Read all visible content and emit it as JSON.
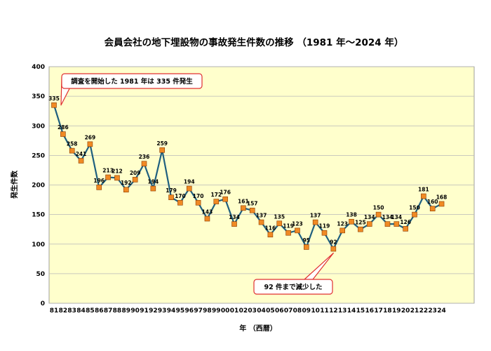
{
  "colors": {
    "plot_bg": "#FFFFCC",
    "line": "#1F5F7F",
    "marker": "#F08A24",
    "marker_edge": "#8A3A00",
    "callout_border": "#E03030",
    "grid": "#B8B8B8"
  },
  "chart_data": {
    "type": "line",
    "title": "会員会社の地下埋設物の事故発生件数の推移 （1981 年～2024 年）",
    "xlabel": "年 （西暦）",
    "ylabel": "発生件数",
    "ylim": [
      0,
      400
    ],
    "yticks": [
      0,
      50,
      100,
      150,
      200,
      250,
      300,
      350,
      400
    ],
    "grid": true,
    "categories": [
      "81",
      "82",
      "83",
      "84",
      "85",
      "86",
      "87",
      "88",
      "89",
      "90",
      "91",
      "92",
      "93",
      "94",
      "95",
      "96",
      "97",
      "98",
      "99",
      "00",
      "01",
      "02",
      "03",
      "04",
      "05",
      "06",
      "07",
      "08",
      "09",
      "10",
      "11",
      "12",
      "13",
      "14",
      "15",
      "16",
      "17",
      "18",
      "19",
      "20",
      "21",
      "22",
      "23",
      "24"
    ],
    "values": [
      335,
      286,
      258,
      241,
      269,
      196,
      213,
      212,
      192,
      209,
      236,
      194,
      259,
      179,
      170,
      194,
      170,
      143,
      172,
      176,
      134,
      161,
      157,
      137,
      116,
      135,
      119,
      123,
      95,
      137,
      119,
      92,
      123,
      138,
      125,
      134,
      150,
      134,
      134,
      126,
      150,
      181,
      160,
      168
    ],
    "annotations": [
      {
        "text": "調査を開始した 1981 年は 335 件発生",
        "index": 0
      },
      {
        "text": "92 件まで減少した",
        "index": 31
      }
    ]
  }
}
